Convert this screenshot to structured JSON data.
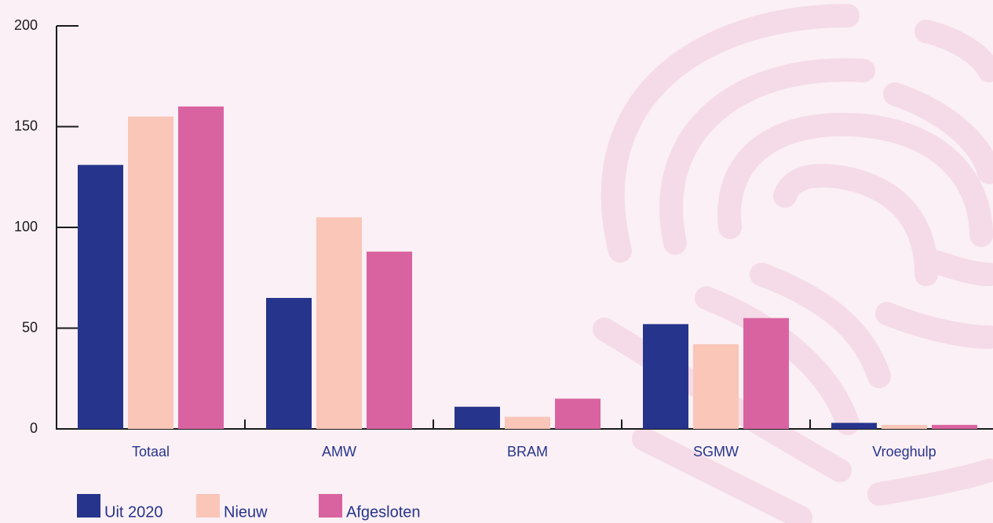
{
  "chart_data": {
    "type": "bar",
    "categories": [
      "Totaal",
      "AMW",
      "BRAM",
      "SGMW",
      "Vroeghulp"
    ],
    "series": [
      {
        "name": "Uit 2020",
        "color": "#26348b",
        "values": [
          131,
          65,
          11,
          52,
          3
        ]
      },
      {
        "name": "Nieuw",
        "color": "#f9c6b8",
        "values": [
          155,
          105,
          6,
          42,
          2
        ]
      },
      {
        "name": "Afgesloten",
        "color": "#d963a0",
        "values": [
          160,
          88,
          15,
          55,
          2
        ]
      }
    ],
    "ylim": [
      0,
      200
    ],
    "yticks": [
      0,
      50,
      100,
      150,
      200
    ],
    "grid": false
  }
}
